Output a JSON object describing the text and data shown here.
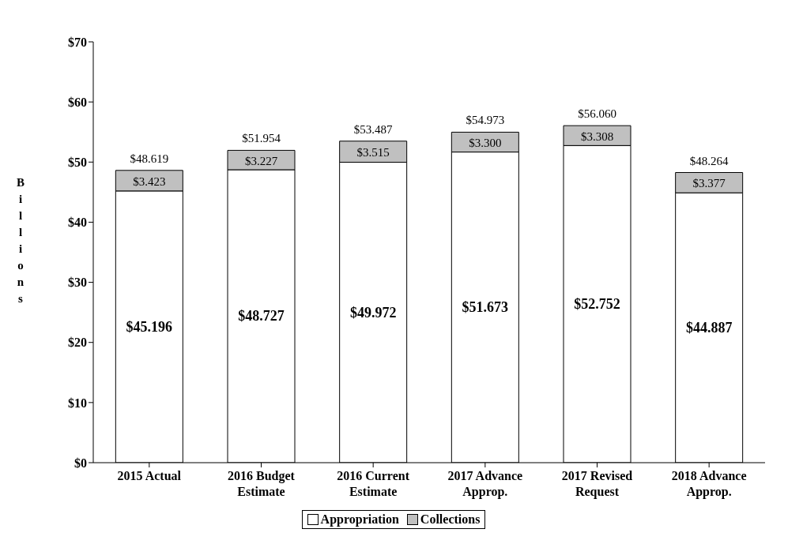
{
  "chart_data": {
    "type": "bar",
    "stacked": true,
    "ylabel": "Billions",
    "categories": [
      "2015 Actual",
      "2016 Budget Estimate",
      "2016 Current Estimate",
      "2017 Advance Approp.",
      "2017 Revised Request",
      "2018 Advance Approp."
    ],
    "series": [
      {
        "name": "Appropriation",
        "color": "#ffffff",
        "values": [
          45.196,
          48.727,
          49.972,
          51.673,
          52.752,
          44.887
        ],
        "value_labels": [
          "$45.196",
          "$48.727",
          "$49.972",
          "$51.673",
          "$52.752",
          "$44.887"
        ]
      },
      {
        "name": "Collections",
        "color": "#c0c0c0",
        "values": [
          3.423,
          3.227,
          3.515,
          3.3,
          3.308,
          3.377
        ],
        "value_labels": [
          "$3.423",
          "$3.227",
          "$3.515",
          "$3.300",
          "$3.308",
          "$3.377"
        ]
      }
    ],
    "totals": [
      "$48.619",
      "$51.954",
      "$53.487",
      "$54.973",
      "$56.060",
      "$48.264"
    ],
    "ylim": [
      0,
      70
    ],
    "yticks": [
      {
        "value": 0,
        "label": "$0"
      },
      {
        "value": 10,
        "label": "$10"
      },
      {
        "value": 20,
        "label": "$20"
      },
      {
        "value": 30,
        "label": "$30"
      },
      {
        "value": 40,
        "label": "$40"
      },
      {
        "value": 50,
        "label": "$50"
      },
      {
        "value": 60,
        "label": "$60"
      },
      {
        "value": 70,
        "label": "$70"
      }
    ],
    "legend": "bottom"
  }
}
